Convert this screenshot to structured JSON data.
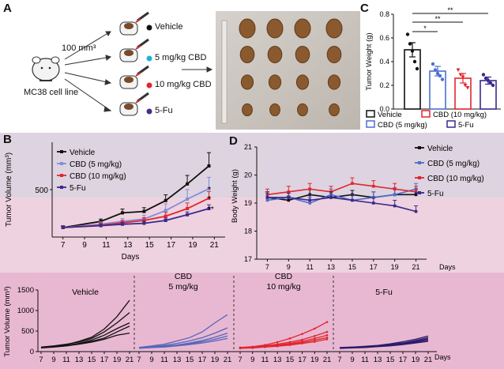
{
  "panel_letters": {
    "a": "A",
    "b": "B",
    "c": "C",
    "d": "D"
  },
  "panel_a": {
    "tumor_volume_label": "100 mm³",
    "cell_line_label": "MC38 cell line",
    "groups": [
      {
        "label": "Vehicle",
        "color": "#111111"
      },
      {
        "label": "5 mg/kg CBD",
        "color": "#1fb1d9"
      },
      {
        "label": "10 mg/kg CBD",
        "color": "#e0262d"
      },
      {
        "label": "5-Fu",
        "color": "#4b2a8a"
      }
    ]
  },
  "chart_data": [
    {
      "id": "C",
      "type": "bar",
      "ylabel": "Tumor Weight (g)",
      "ylim": [
        0,
        0.8
      ],
      "yticks": [
        "0.0",
        "0.2",
        "0.4",
        "0.6",
        "0.8"
      ],
      "categories": [
        "Vehicle",
        "CBD (5 mg/kg)",
        "CBD (10 mg/kg)",
        "5-Fu"
      ],
      "values": [
        0.5,
        0.32,
        0.26,
        0.24
      ],
      "errors": [
        0.06,
        0.04,
        0.04,
        0.03
      ],
      "points": [
        [
          0.63,
          0.55,
          0.49,
          0.4,
          0.34
        ],
        [
          0.38,
          0.33,
          0.3,
          0.28,
          0.25
        ],
        [
          0.33,
          0.29,
          0.27,
          0.2,
          0.18
        ],
        [
          0.29,
          0.26,
          0.24,
          0.22,
          0.2
        ]
      ],
      "colors": [
        "#111111",
        "#4a6fcf",
        "#e0262d",
        "#3a2a8a"
      ],
      "significance": [
        "*",
        "**",
        "**"
      ],
      "legend": [
        "Vehicle",
        "CBD (10 mg/kg)",
        "CBD (5 mg/kg)",
        "5-Fu"
      ]
    },
    {
      "id": "B",
      "type": "line",
      "xlabel": "Days",
      "ylabel": "Tumor Volume (mm³)",
      "ylim": [
        0,
        1000
      ],
      "yticks": [
        "500"
      ],
      "xticks": [
        "7",
        "9",
        "11",
        "13",
        "15",
        "17",
        "19",
        "21"
      ],
      "x": [
        7,
        10.5,
        12.5,
        14.5,
        16.5,
        18.5,
        20.5
      ],
      "series": [
        {
          "name": "Vehicle",
          "color": "#111111",
          "values": [
            100,
            165,
            255,
            270,
            385,
            560,
            750
          ],
          "err": [
            20,
            25,
            40,
            40,
            60,
            90,
            140
          ]
        },
        {
          "name": "CBD (5 mg/kg)",
          "color": "#7e8fd8",
          "values": [
            100,
            135,
            165,
            190,
            280,
            400,
            510
          ],
          "err": [
            15,
            25,
            30,
            40,
            70,
            100,
            120
          ]
        },
        {
          "name": "CBD (10 mg/kg)",
          "color": "#e0262d",
          "values": [
            100,
            125,
            150,
            175,
            220,
            300,
            410
          ],
          "err": [
            15,
            20,
            25,
            30,
            40,
            60,
            70
          ]
        },
        {
          "name": "5-Fu",
          "color": "#3a2a8a",
          "values": [
            100,
            120,
            135,
            145,
            175,
            235,
            300
          ],
          "err": [
            10,
            15,
            20,
            20,
            25,
            30,
            40
          ]
        }
      ],
      "significance": [
        "*",
        "*",
        "**"
      ]
    },
    {
      "id": "D",
      "type": "line",
      "xlabel": "Days",
      "ylabel": "Body Weight (g)",
      "ylim": [
        17,
        21
      ],
      "yticks": [
        "17",
        "18",
        "19",
        "20",
        "21"
      ],
      "x": [
        7,
        9,
        11,
        13,
        15,
        17,
        19,
        21
      ],
      "series": [
        {
          "name": "Vehicle",
          "color": "#111111",
          "values": [
            19.2,
            19.1,
            19.3,
            19.2,
            19.3,
            19.2,
            19.3,
            19.3
          ],
          "err": [
            0.2,
            0.15,
            0.2,
            0.2,
            0.15,
            0.2,
            0.2,
            0.2
          ]
        },
        {
          "name": "CBD (5 mg/kg)",
          "color": "#4a6fcf",
          "values": [
            19.1,
            19.2,
            19.0,
            19.3,
            19.1,
            19.2,
            19.3,
            19.5
          ],
          "err": [
            0.25,
            0.2,
            0.2,
            0.2,
            0.2,
            0.2,
            0.25,
            0.2
          ]
        },
        {
          "name": "CBD (10 mg/kg)",
          "color": "#e0262d",
          "values": [
            19.3,
            19.4,
            19.5,
            19.4,
            19.7,
            19.6,
            19.5,
            19.4
          ],
          "err": [
            0.2,
            0.2,
            0.2,
            0.2,
            0.2,
            0.2,
            0.2,
            0.2
          ]
        },
        {
          "name": "5-Fu",
          "color": "#3a2a8a",
          "values": [
            19.2,
            19.2,
            19.1,
            19.2,
            19.1,
            19.0,
            18.9,
            18.7
          ],
          "err": [
            0.2,
            0.15,
            0.2,
            0.2,
            0.2,
            0.2,
            0.2,
            0.2
          ]
        }
      ]
    },
    {
      "id": "E",
      "type": "line",
      "xlabel": "Days",
      "ylabel": "Tumor Volume (mm³)",
      "ylim": [
        0,
        1500
      ],
      "yticks": [
        "0",
        "500",
        "1000",
        "1500"
      ],
      "xticks": [
        "7",
        "9",
        "11",
        "13",
        "15",
        "17",
        "19",
        "21"
      ],
      "x": [
        7,
        9,
        11,
        13,
        15,
        17,
        19,
        21
      ],
      "groups": [
        {
          "name": "Vehicle",
          "color": "#111111",
          "lines": [
            [
              100,
              130,
              170,
              250,
              350,
              550,
              850,
              1250
            ],
            [
              110,
              140,
              180,
              230,
              320,
              480,
              700,
              950
            ],
            [
              100,
              120,
              150,
              200,
              280,
              400,
              560,
              700
            ],
            [
              90,
              110,
              140,
              190,
              250,
              330,
              480,
              620
            ],
            [
              100,
              115,
              140,
              180,
              230,
              300,
              400,
              450
            ]
          ]
        },
        {
          "name": "CBD\n5 mg/kg",
          "color": "#5566bb",
          "lines": [
            [
              100,
              140,
              180,
              260,
              340,
              480,
              700,
              900
            ],
            [
              100,
              120,
              150,
              200,
              260,
              340,
              450,
              580
            ],
            [
              90,
              110,
              130,
              160,
              210,
              270,
              350,
              450
            ],
            [
              90,
              100,
              120,
              150,
              190,
              240,
              300,
              380
            ],
            [
              80,
              100,
              110,
              140,
              170,
              210,
              260,
              320
            ]
          ]
        },
        {
          "name": "CBD\n10 mg/kg",
          "color": "#e0262d",
          "lines": [
            [
              100,
              120,
              160,
              230,
              320,
              430,
              560,
              720
            ],
            [
              100,
              110,
              140,
              180,
              230,
              290,
              380,
              480
            ],
            [
              90,
              110,
              130,
              160,
              200,
              250,
              320,
              400
            ],
            [
              90,
              100,
              120,
              150,
              180,
              220,
              280,
              340
            ],
            [
              80,
              90,
              110,
              130,
              160,
              200,
              240,
              300
            ]
          ]
        },
        {
          "name": "5-Fu",
          "color": "#2a1a6a",
          "lines": [
            [
              100,
              110,
              130,
              150,
              190,
              240,
              300,
              380
            ],
            [
              90,
              110,
              120,
              140,
              170,
              210,
              270,
              340
            ],
            [
              90,
              100,
              120,
              140,
              160,
              200,
              250,
              310
            ],
            [
              80,
              100,
              110,
              130,
              150,
              180,
              230,
              280
            ],
            [
              80,
              90,
              100,
              120,
              140,
              170,
              210,
              250
            ]
          ]
        }
      ]
    }
  ]
}
